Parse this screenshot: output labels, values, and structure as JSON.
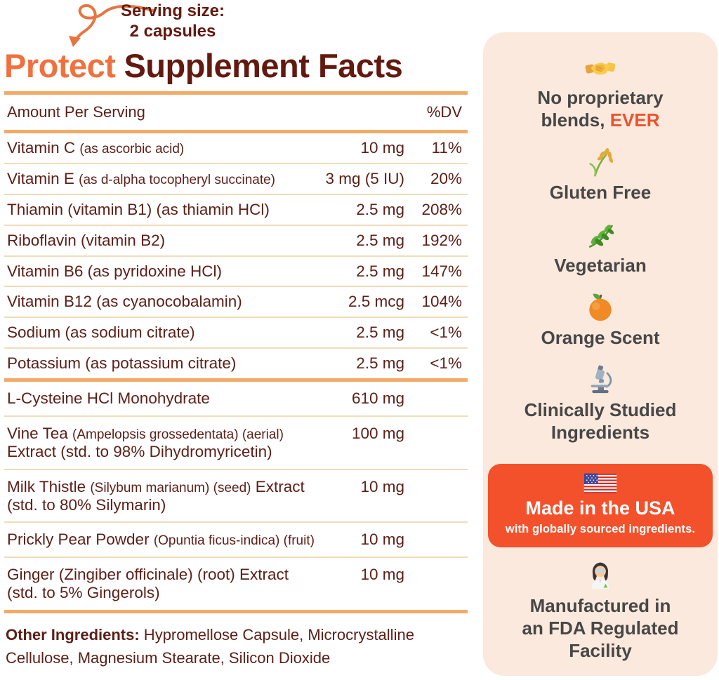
{
  "title": {
    "accent": "Protect",
    "rest": "Supplement Facts"
  },
  "serving": {
    "line1": "Serving size:",
    "line2": "2 capsules",
    "arrow_icon": "curved-arrow-icon"
  },
  "table": {
    "col_left": "Amount Per Serving",
    "col_right": "%DV",
    "groups": [
      {
        "rows": [
          {
            "label": [
              {
                "t": "Vitamin C "
              },
              {
                "t": "(as ascorbic acid)",
                "small": true
              }
            ],
            "amount": "10 mg",
            "dv": "11%"
          },
          {
            "label": [
              {
                "t": "Vitamin E "
              },
              {
                "t": "(as d-alpha tocopheryl succinate)",
                "small": true
              }
            ],
            "amount": "3 mg (5 IU)",
            "dv": "20%"
          },
          {
            "label": [
              {
                "t": "Thiamin (vitamin B1) (as thiamin HCl)"
              }
            ],
            "amount": "2.5 mg",
            "dv": "208%"
          },
          {
            "label": [
              {
                "t": "Riboflavin (vitamin B2)"
              }
            ],
            "amount": "2.5 mg",
            "dv": "192%"
          },
          {
            "label": [
              {
                "t": "Vitamin B6 (as pyridoxine HCl)"
              }
            ],
            "amount": "2.5 mg",
            "dv": "147%"
          },
          {
            "label": [
              {
                "t": "Vitamin B12 (as cyanocobalamin)"
              }
            ],
            "amount": "2.5 mcg",
            "dv": "104%"
          },
          {
            "label": [
              {
                "t": "Sodium (as sodium citrate)"
              }
            ],
            "amount": "2.5 mg",
            "dv": "<1%"
          },
          {
            "label": [
              {
                "t": "Potassium (as potassium citrate)"
              }
            ],
            "amount": "2.5 mg",
            "dv": "<1%"
          }
        ]
      },
      {
        "rows": [
          {
            "label": [
              {
                "t": "L-Cysteine HCl Monohydrate"
              }
            ],
            "amount": "610 mg",
            "dv": ""
          },
          {
            "label": [
              {
                "t": "Vine Tea "
              },
              {
                "t": "(Ampelopsis grossedentata) (aerial)",
                "small": true
              },
              {
                "br": true
              },
              {
                "t": "Extract (std. to 98% Dihydromyricetin)"
              }
            ],
            "amount": "100 mg",
            "dv": ""
          },
          {
            "label": [
              {
                "t": "Milk Thistle "
              },
              {
                "t": "(Silybum marianum) (seed)",
                "small": true
              },
              {
                "t": " Extract"
              },
              {
                "br": true
              },
              {
                "t": "(std. to 80% Silymarin)"
              }
            ],
            "amount": "10 mg",
            "dv": ""
          },
          {
            "label": [
              {
                "t": "Prickly Pear Powder "
              },
              {
                "t": "(Opuntia ficus-indica) (fruit)",
                "small": true
              }
            ],
            "amount": "10 mg",
            "dv": ""
          },
          {
            "label": [
              {
                "t": "Ginger (Zingiber officinale) (root) Extract"
              },
              {
                "br": true
              },
              {
                "t": "(std. to 5% Gingerols)"
              }
            ],
            "amount": "10 mg",
            "dv": ""
          }
        ]
      }
    ],
    "other_ingredients": {
      "label": "Other Ingredients:",
      "items": " Hypromellose Capsule, Microcrystalline Cellulose, Magnesium Stearate, Silicon Dioxide"
    }
  },
  "sidebar": {
    "badges": [
      {
        "icon": "handshake-icon",
        "lines": [
          [
            {
              "t": "No proprietary"
            }
          ],
          [
            {
              "t": "blends, "
            },
            {
              "t": "EVER",
              "accent": true
            }
          ]
        ]
      },
      {
        "icon": "rice-sheaf-icon",
        "lines": [
          [
            {
              "t": "Gluten Free"
            }
          ]
        ]
      },
      {
        "icon": "herb-icon",
        "lines": [
          [
            {
              "t": "Vegetarian"
            }
          ]
        ]
      },
      {
        "icon": "orange-icon",
        "lines": [
          [
            {
              "t": "Orange Scent"
            }
          ]
        ]
      },
      {
        "icon": "microscope-icon",
        "lines": [
          [
            {
              "t": "Clinically Studied"
            }
          ],
          [
            {
              "t": "Ingredients"
            }
          ]
        ]
      },
      {
        "card": true,
        "icon": "us-flag-icon",
        "title": "Made in the USA",
        "subtitle": "with globally sourced ingredients."
      },
      {
        "icon": "woman-scientist-icon",
        "lines": [
          [
            {
              "t": "Manufactured in"
            }
          ],
          [
            {
              "t": "an FDA Regulated"
            }
          ],
          [
            {
              "t": "Facility"
            }
          ]
        ]
      }
    ]
  },
  "colors": {
    "accent_orange": "#F2512B",
    "title_orange": "#F0713E",
    "ever_orange": "#E8542E",
    "maroon": "#63190F",
    "table_text": "#5C2018",
    "thick_rule": "#F2AA66",
    "thin_rule": "#EFDCBD",
    "sidebar_bg": "#FBE9DD",
    "sidebar_text": "#474747",
    "card_text": "#FFFFFF"
  }
}
